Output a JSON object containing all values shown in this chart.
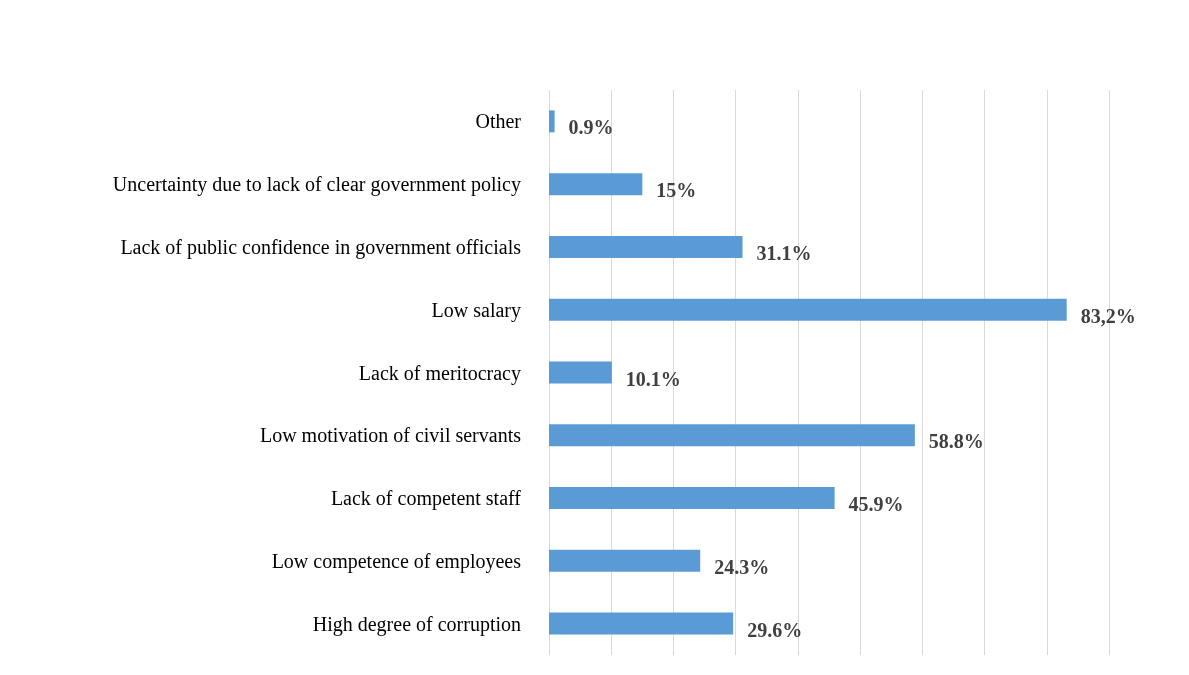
{
  "chart_data": {
    "type": "bar",
    "orientation": "horizontal",
    "categories": [
      "Other",
      "Uncertainty due to lack of clear government policy",
      "Lack of public confidence in government officials",
      "Low salary",
      "Lack of meritocracy",
      "Low motivation of civil servants",
      "Lack of competent staff",
      "Low competence of employees",
      "High degree of corruption"
    ],
    "values": [
      0.9,
      15,
      31.1,
      83.2,
      10.1,
      58.8,
      45.9,
      24.3,
      29.6
    ],
    "value_labels": [
      "0.9%",
      "15%",
      "31.1%",
      "83,2%",
      "10.1%",
      "58.8%",
      "45.9%",
      "24.3%",
      "29.6%"
    ],
    "color": "#5b9bd5",
    "xlim": [
      0,
      90
    ],
    "xticks": [
      {
        "value": 0,
        "label": null
      },
      {
        "value": 10,
        "label": null
      },
      {
        "value": 20,
        "label": null
      },
      {
        "value": 30,
        "label": null
      },
      {
        "value": 40,
        "label": null
      },
      {
        "value": 50,
        "label": null
      },
      {
        "value": 60,
        "label": null
      },
      {
        "value": 70,
        "label": null
      },
      {
        "value": 80,
        "label": null
      },
      {
        "value": 90,
        "label": null
      }
    ],
    "tick_labels": "y",
    "grid": "x"
  }
}
